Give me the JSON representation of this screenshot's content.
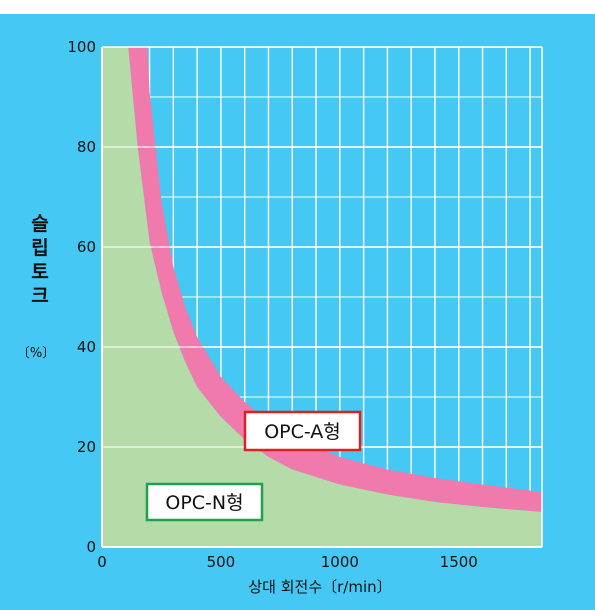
{
  "chart_data": {
    "type": "area",
    "title": "",
    "xlabel": "상대 회전수〔r/min〕",
    "ylabel": "슬립토크",
    "yunit": "〔%〕",
    "xlim": [
      0,
      1850
    ],
    "ylim": [
      0,
      100
    ],
    "x_ticks": [
      "0",
      "500",
      "1000",
      "1500"
    ],
    "y_ticks": [
      "0",
      "20",
      "40",
      "60",
      "80",
      "100"
    ],
    "grid": true,
    "series": [
      {
        "name": "OPC-N형",
        "color": "#b4dba8",
        "x": [
          110,
          150,
          200,
          250,
          300,
          350,
          400,
          500,
          600,
          700,
          800,
          1000,
          1200,
          1400,
          1600,
          1850
        ],
        "y": [
          100,
          80,
          61,
          51,
          43,
          37,
          32,
          26,
          21.5,
          18,
          15.5,
          12.5,
          10.5,
          9,
          8,
          7
        ]
      },
      {
        "name": "OPC-A형",
        "color": "#f07aab",
        "x": [
          190,
          200,
          250,
          300,
          350,
          400,
          500,
          600,
          700,
          800,
          1000,
          1200,
          1400,
          1600,
          1850
        ],
        "y": [
          100,
          91,
          69,
          56,
          48,
          42,
          34,
          29,
          25,
          22,
          18,
          15.5,
          13.8,
          12.5,
          11
        ]
      }
    ]
  }
}
